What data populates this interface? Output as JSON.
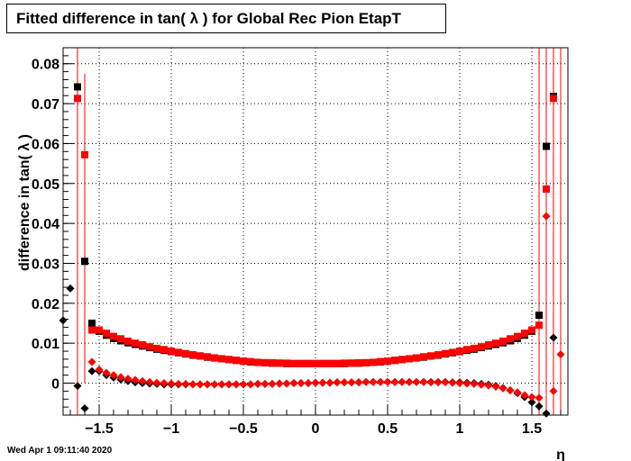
{
  "title": "Fitted difference in tan( λ ) for Global Rec Pion EtapT",
  "timestamp": "Wed Apr  1 09:11:40 2020",
  "colors": {
    "black_series": "#000000",
    "red_series": "#ff0000",
    "grid": "#000000"
  },
  "chart_data": {
    "type": "scatter",
    "title": "Fitted difference in tan( λ ) for Global Rec Pion EtapT",
    "xlabel": "η",
    "ylabel": "difference in tan( λ )",
    "xlim": [
      -1.75,
      1.75
    ],
    "ylim": [
      -0.008,
      0.084
    ],
    "xticks": [
      -1.5,
      -1,
      -0.5,
      0,
      0.5,
      1,
      1.5
    ],
    "xtick_labels": [
      "−1.5",
      "−1",
      "−0.5",
      "0",
      "0.5",
      "1",
      "1.5"
    ],
    "yticks": [
      0,
      0.01,
      0.02,
      0.03,
      0.04,
      0.05,
      0.06,
      0.07,
      0.08
    ],
    "ytick_labels": [
      "0",
      "0.01",
      "0.02",
      "0.03",
      "0.04",
      "0.05",
      "0.06",
      "0.07",
      "0.08"
    ],
    "grid": true,
    "series": [
      {
        "marker": "square",
        "color": "#000000",
        "points": [
          [
            -1.65,
            0.0742
          ],
          [
            -1.6,
            0.0305
          ],
          [
            -1.55,
            0.015
          ],
          [
            -1.5,
            0.013
          ],
          [
            -1.45,
            0.012
          ],
          [
            -1.4,
            0.0112
          ],
          [
            -1.35,
            0.0106
          ],
          [
            -1.3,
            0.0101
          ],
          [
            -1.25,
            0.0097
          ],
          [
            -1.2,
            0.0093
          ],
          [
            -1.15,
            0.0089
          ],
          [
            -1.1,
            0.0085
          ],
          [
            -1.05,
            0.0082
          ],
          [
            -1.0,
            0.0079
          ],
          [
            -0.95,
            0.0076
          ],
          [
            -0.9,
            0.0073
          ],
          [
            -0.85,
            0.007
          ],
          [
            -0.8,
            0.0068
          ],
          [
            -0.75,
            0.0065
          ],
          [
            -0.7,
            0.0063
          ],
          [
            -0.65,
            0.0061
          ],
          [
            -0.6,
            0.0059
          ],
          [
            -0.55,
            0.0057
          ],
          [
            -0.5,
            0.0055
          ],
          [
            -0.45,
            0.0053
          ],
          [
            -0.4,
            0.0052
          ],
          [
            -0.35,
            0.0051
          ],
          [
            -0.3,
            0.005
          ],
          [
            -0.25,
            0.005
          ],
          [
            -0.2,
            0.0049
          ],
          [
            -0.15,
            0.0049
          ],
          [
            -0.1,
            0.0049
          ],
          [
            -0.05,
            0.0049
          ],
          [
            0.0,
            0.0049
          ],
          [
            0.05,
            0.0049
          ],
          [
            0.1,
            0.0049
          ],
          [
            0.15,
            0.0049
          ],
          [
            0.2,
            0.0049
          ],
          [
            0.25,
            0.005
          ],
          [
            0.3,
            0.005
          ],
          [
            0.35,
            0.0051
          ],
          [
            0.4,
            0.0052
          ],
          [
            0.45,
            0.0053
          ],
          [
            0.5,
            0.0055
          ],
          [
            0.55,
            0.0057
          ],
          [
            0.6,
            0.0059
          ],
          [
            0.65,
            0.0061
          ],
          [
            0.7,
            0.0063
          ],
          [
            0.75,
            0.0065
          ],
          [
            0.8,
            0.0068
          ],
          [
            0.85,
            0.007
          ],
          [
            0.9,
            0.0073
          ],
          [
            0.95,
            0.0076
          ],
          [
            1.0,
            0.0079
          ],
          [
            1.05,
            0.0082
          ],
          [
            1.1,
            0.0085
          ],
          [
            1.15,
            0.0089
          ],
          [
            1.2,
            0.0093
          ],
          [
            1.25,
            0.0097
          ],
          [
            1.3,
            0.0101
          ],
          [
            1.35,
            0.0106
          ],
          [
            1.4,
            0.0112
          ],
          [
            1.45,
            0.012
          ],
          [
            1.5,
            0.013
          ],
          [
            1.55,
            0.017
          ],
          [
            1.6,
            0.0593
          ],
          [
            1.65,
            0.0718
          ]
        ]
      },
      {
        "marker": "square",
        "color": "#ff0000",
        "points": [
          [
            -1.65,
            0.0713
          ],
          [
            -1.6,
            0.0572
          ],
          [
            -1.55,
            0.0133
          ],
          [
            -1.5,
            0.0133
          ],
          [
            -1.45,
            0.0125
          ],
          [
            -1.4,
            0.0117
          ],
          [
            -1.35,
            0.0111
          ],
          [
            -1.3,
            0.0105
          ],
          [
            -1.25,
            0.01
          ],
          [
            -1.2,
            0.0096
          ],
          [
            -1.15,
            0.0091
          ],
          [
            -1.1,
            0.0087
          ],
          [
            -1.05,
            0.0084
          ],
          [
            -1.0,
            0.008
          ],
          [
            -0.95,
            0.0077
          ],
          [
            -0.9,
            0.0074
          ],
          [
            -0.85,
            0.0071
          ],
          [
            -0.8,
            0.0068
          ],
          [
            -0.75,
            0.0066
          ],
          [
            -0.7,
            0.0063
          ],
          [
            -0.65,
            0.0061
          ],
          [
            -0.6,
            0.0059
          ],
          [
            -0.55,
            0.0057
          ],
          [
            -0.5,
            0.0055
          ],
          [
            -0.45,
            0.0054
          ],
          [
            -0.4,
            0.0052
          ],
          [
            -0.35,
            0.0051
          ],
          [
            -0.3,
            0.0051
          ],
          [
            -0.25,
            0.005
          ],
          [
            -0.2,
            0.005
          ],
          [
            -0.15,
            0.0049
          ],
          [
            -0.1,
            0.0049
          ],
          [
            -0.05,
            0.0049
          ],
          [
            0.0,
            0.0049
          ],
          [
            0.05,
            0.0049
          ],
          [
            0.1,
            0.0049
          ],
          [
            0.15,
            0.0049
          ],
          [
            0.2,
            0.005
          ],
          [
            0.25,
            0.005
          ],
          [
            0.3,
            0.0051
          ],
          [
            0.35,
            0.0051
          ],
          [
            0.4,
            0.0052
          ],
          [
            0.45,
            0.0054
          ],
          [
            0.5,
            0.0055
          ],
          [
            0.55,
            0.0057
          ],
          [
            0.6,
            0.0059
          ],
          [
            0.65,
            0.0061
          ],
          [
            0.7,
            0.0063
          ],
          [
            0.75,
            0.0066
          ],
          [
            0.8,
            0.0068
          ],
          [
            0.85,
            0.0071
          ],
          [
            0.9,
            0.0074
          ],
          [
            0.95,
            0.0077
          ],
          [
            1.0,
            0.008
          ],
          [
            1.05,
            0.0084
          ],
          [
            1.1,
            0.0087
          ],
          [
            1.15,
            0.0091
          ],
          [
            1.2,
            0.0096
          ],
          [
            1.25,
            0.01
          ],
          [
            1.3,
            0.0105
          ],
          [
            1.35,
            0.0111
          ],
          [
            1.4,
            0.0117
          ],
          [
            1.45,
            0.0125
          ],
          [
            1.5,
            0.0133
          ],
          [
            1.55,
            0.0145
          ],
          [
            1.6,
            0.0486
          ],
          [
            1.65,
            0.0713
          ]
        ]
      },
      {
        "marker": "diamond",
        "color": "#000000",
        "points": [
          [
            -1.75,
            0.0157
          ],
          [
            -1.7,
            0.0237
          ],
          [
            -1.65,
            -0.0007
          ],
          [
            -1.6,
            -0.0063
          ],
          [
            -1.55,
            0.003
          ],
          [
            -1.5,
            0.003
          ],
          [
            -1.45,
            0.002
          ],
          [
            -1.4,
            0.0014
          ],
          [
            -1.35,
            0.0009
          ],
          [
            -1.3,
            0.0005
          ],
          [
            -1.25,
            0.0002
          ],
          [
            -1.2,
            0.0
          ],
          [
            -1.15,
            -0.0001
          ],
          [
            -1.1,
            -0.0002
          ],
          [
            -1.05,
            -0.0003
          ],
          [
            -1.0,
            -0.0003
          ],
          [
            -0.95,
            -0.0003
          ],
          [
            -0.9,
            -0.0003
          ],
          [
            -0.85,
            -0.0003
          ],
          [
            -0.8,
            -0.0003
          ],
          [
            -0.75,
            -0.0003
          ],
          [
            -0.7,
            -0.0003
          ],
          [
            -0.65,
            -0.0003
          ],
          [
            -0.6,
            -0.0003
          ],
          [
            -0.55,
            -0.0003
          ],
          [
            -0.5,
            -0.0003
          ],
          [
            -0.45,
            -0.0003
          ],
          [
            -0.4,
            -0.0002
          ],
          [
            -0.35,
            -0.0002
          ],
          [
            -0.3,
            -0.0002
          ],
          [
            -0.25,
            -0.0001
          ],
          [
            -0.2,
            -0.0001
          ],
          [
            -0.15,
            0.0
          ],
          [
            -0.1,
            0.0
          ],
          [
            -0.05,
            0.0
          ],
          [
            0.0,
            0.0001
          ],
          [
            0.05,
            0.0001
          ],
          [
            0.1,
            0.0001
          ],
          [
            0.15,
            0.0002
          ],
          [
            0.2,
            0.0002
          ],
          [
            0.25,
            0.0002
          ],
          [
            0.3,
            0.0002
          ],
          [
            0.35,
            0.0003
          ],
          [
            0.4,
            0.0003
          ],
          [
            0.45,
            0.0003
          ],
          [
            0.5,
            0.0003
          ],
          [
            0.55,
            0.0003
          ],
          [
            0.6,
            0.0003
          ],
          [
            0.65,
            0.0003
          ],
          [
            0.7,
            0.0003
          ],
          [
            0.75,
            0.0003
          ],
          [
            0.8,
            0.0003
          ],
          [
            0.85,
            0.0003
          ],
          [
            0.9,
            0.0003
          ],
          [
            0.95,
            0.0002
          ],
          [
            1.0,
            0.0002
          ],
          [
            1.05,
            0.0001
          ],
          [
            1.1,
            0.0
          ],
          [
            1.15,
            -0.0002
          ],
          [
            1.2,
            -0.0004
          ],
          [
            1.25,
            -0.0007
          ],
          [
            1.3,
            -0.0012
          ],
          [
            1.35,
            -0.0018
          ],
          [
            1.4,
            -0.0025
          ],
          [
            1.45,
            -0.0035
          ],
          [
            1.5,
            -0.0048
          ],
          [
            1.55,
            -0.0058
          ],
          [
            1.6,
            -0.0076
          ],
          [
            1.65,
            0.0114
          ]
        ]
      },
      {
        "marker": "diamond",
        "color": "#ff0000",
        "points": [
          [
            -1.55,
            0.0053
          ],
          [
            -1.5,
            0.0034
          ],
          [
            -1.45,
            0.0026
          ],
          [
            -1.4,
            0.002
          ],
          [
            -1.35,
            0.0015
          ],
          [
            -1.3,
            0.0011
          ],
          [
            -1.25,
            0.0008
          ],
          [
            -1.2,
            0.0005
          ],
          [
            -1.15,
            0.0003
          ],
          [
            -1.1,
            0.0001
          ],
          [
            -1.05,
            0.0
          ],
          [
            -1.0,
            -0.0001
          ],
          [
            -0.95,
            -0.0002
          ],
          [
            -0.9,
            -0.0002
          ],
          [
            -0.85,
            -0.0003
          ],
          [
            -0.8,
            -0.0003
          ],
          [
            -0.75,
            -0.0003
          ],
          [
            -0.7,
            -0.0003
          ],
          [
            -0.65,
            -0.0003
          ],
          [
            -0.6,
            -0.0003
          ],
          [
            -0.55,
            -0.0003
          ],
          [
            -0.5,
            -0.0003
          ],
          [
            -0.45,
            -0.0003
          ],
          [
            -0.4,
            -0.0002
          ],
          [
            -0.35,
            -0.0002
          ],
          [
            -0.3,
            -0.0002
          ],
          [
            -0.25,
            -0.0001
          ],
          [
            -0.2,
            -0.0001
          ],
          [
            -0.15,
            0.0
          ],
          [
            -0.1,
            0.0
          ],
          [
            -0.05,
            0.0
          ],
          [
            0.0,
            0.0001
          ],
          [
            0.05,
            0.0001
          ],
          [
            0.1,
            0.0001
          ],
          [
            0.15,
            0.0002
          ],
          [
            0.2,
            0.0002
          ],
          [
            0.25,
            0.0002
          ],
          [
            0.3,
            0.0002
          ],
          [
            0.35,
            0.0003
          ],
          [
            0.4,
            0.0003
          ],
          [
            0.45,
            0.0003
          ],
          [
            0.5,
            0.0003
          ],
          [
            0.55,
            0.0003
          ],
          [
            0.6,
            0.0003
          ],
          [
            0.65,
            0.0003
          ],
          [
            0.7,
            0.0003
          ],
          [
            0.75,
            0.0003
          ],
          [
            0.8,
            0.0002
          ],
          [
            0.85,
            0.0002
          ],
          [
            0.9,
            0.0002
          ],
          [
            0.95,
            0.0001
          ],
          [
            1.0,
            0.0
          ],
          [
            1.05,
            -0.0001
          ],
          [
            1.1,
            -0.0002
          ],
          [
            1.15,
            -0.0004
          ],
          [
            1.2,
            -0.0006
          ],
          [
            1.25,
            -0.0009
          ],
          [
            1.3,
            -0.0013
          ],
          [
            1.35,
            -0.0018
          ],
          [
            1.4,
            -0.0023
          ],
          [
            1.45,
            -0.003
          ],
          [
            1.5,
            -0.0035
          ],
          [
            1.55,
            -0.0037
          ],
          [
            1.6,
            0.0418
          ],
          [
            1.65,
            -0.002
          ],
          [
            1.7,
            0.0072
          ]
        ]
      }
    ],
    "error_bars": [
      {
        "color": "#ff0000",
        "x": -1.65,
        "low": -0.008,
        "high": 0.084
      },
      {
        "color": "#000000",
        "x": -1.6,
        "low": 0.0,
        "high": 0.0305
      },
      {
        "color": "#ff0000",
        "x": -1.6,
        "low": 0.0,
        "high": 0.0775
      },
      {
        "color": "#000000",
        "x": 1.55,
        "low": 0.013,
        "high": 0.021
      },
      {
        "color": "#ff0000",
        "x": 1.55,
        "low": -0.008,
        "high": 0.084
      },
      {
        "color": "#000000",
        "x": 1.6,
        "low": 0.0,
        "high": 0.063
      },
      {
        "color": "#ff0000",
        "x": 1.6,
        "low": -0.008,
        "high": 0.084
      },
      {
        "color": "#ff0000",
        "x": 1.65,
        "low": -0.008,
        "high": 0.084
      },
      {
        "color": "#ff0000",
        "x": 1.7,
        "low": -0.008,
        "high": 0.084
      }
    ]
  }
}
